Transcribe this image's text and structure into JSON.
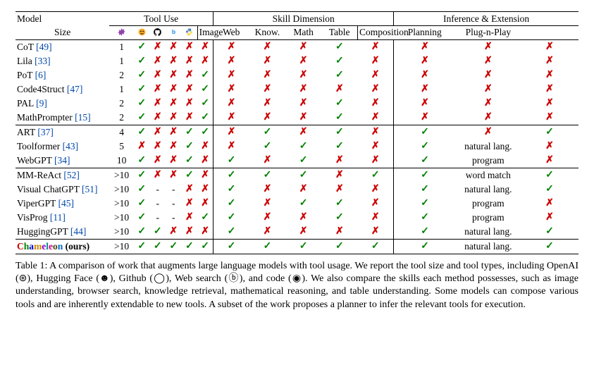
{
  "headers": {
    "model": "Model",
    "group_tool": "Tool Use",
    "group_skill": "Skill Dimension",
    "group_inf": "Inference & Extension",
    "size": "Size",
    "skill": [
      "Image",
      "Web",
      "Know.",
      "Math",
      "Table"
    ],
    "inf": [
      "Composition",
      "Planning",
      "Plug-n-Play"
    ]
  },
  "tool_icons": {
    "openai": {
      "name": "openai-icon",
      "color": "#8e44ad"
    },
    "hf": {
      "name": "huggingface-icon",
      "color": "#f5a623"
    },
    "github": {
      "name": "github-icon",
      "color": "#000000"
    },
    "web": {
      "name": "websearch-icon",
      "color": "#1e88e5"
    },
    "code": {
      "name": "python-icon",
      "color": "#3572A5"
    }
  },
  "marks": {
    "check": "✓",
    "cross": "✗",
    "dash": "-"
  },
  "colors": {
    "check": "#008000",
    "cross": "#cc0000",
    "cite": "#0047ab",
    "chameleon": [
      "#cc0000",
      "#008000",
      "#0000cc",
      "#cc8800",
      "#8800cc",
      "#008888",
      "#cc0088",
      "#444400",
      "#0066cc"
    ]
  },
  "groups": [
    [
      {
        "name": "CoT",
        "cite": "49",
        "size": "1",
        "tools": [
          "c",
          "x",
          "x",
          "x",
          "x"
        ],
        "skills": [
          "x",
          "x",
          "x",
          "c",
          "x"
        ],
        "comp": "x",
        "plan": "x",
        "plug": "x"
      },
      {
        "name": "Lila",
        "cite": "33",
        "size": "1",
        "tools": [
          "c",
          "x",
          "x",
          "x",
          "x"
        ],
        "skills": [
          "x",
          "x",
          "x",
          "c",
          "x"
        ],
        "comp": "x",
        "plan": "x",
        "plug": "x"
      },
      {
        "name": "PoT",
        "cite": "6",
        "size": "2",
        "tools": [
          "c",
          "x",
          "x",
          "x",
          "c"
        ],
        "skills": [
          "x",
          "x",
          "x",
          "c",
          "x"
        ],
        "comp": "x",
        "plan": "x",
        "plug": "x"
      },
      {
        "name": "Code4Struct",
        "cite": "47",
        "size": "1",
        "tools": [
          "c",
          "x",
          "x",
          "x",
          "c"
        ],
        "skills": [
          "x",
          "x",
          "x",
          "x",
          "x"
        ],
        "comp": "x",
        "plan": "x",
        "plug": "x"
      },
      {
        "name": "PAL",
        "cite": "9",
        "size": "2",
        "tools": [
          "c",
          "x",
          "x",
          "x",
          "c"
        ],
        "skills": [
          "x",
          "x",
          "x",
          "c",
          "x"
        ],
        "comp": "x",
        "plan": "x",
        "plug": "x"
      },
      {
        "name": "MathPrompter",
        "cite": "15",
        "size": "2",
        "tools": [
          "c",
          "x",
          "x",
          "x",
          "c"
        ],
        "skills": [
          "x",
          "x",
          "x",
          "c",
          "x"
        ],
        "comp": "x",
        "plan": "x",
        "plug": "x"
      }
    ],
    [
      {
        "name": "ART",
        "cite": "37",
        "size": "4",
        "tools": [
          "c",
          "x",
          "x",
          "c",
          "c"
        ],
        "skills": [
          "x",
          "c",
          "x",
          "c",
          "x"
        ],
        "comp": "c",
        "plan": "x",
        "plug": "c"
      },
      {
        "name": "Toolformer",
        "cite": "43",
        "size": "5",
        "tools": [
          "x",
          "x",
          "x",
          "c",
          "x"
        ],
        "skills": [
          "x",
          "c",
          "c",
          "c",
          "x"
        ],
        "comp": "c",
        "plan": "natural lang.",
        "plug": "x"
      },
      {
        "name": "WebGPT",
        "cite": "34",
        "size": "10",
        "tools": [
          "c",
          "x",
          "x",
          "c",
          "x"
        ],
        "skills": [
          "c",
          "x",
          "c",
          "x",
          "x"
        ],
        "comp": "c",
        "plan": "program",
        "plug": "x"
      }
    ],
    [
      {
        "name": "MM-ReAct",
        "cite": "52",
        "size": ">10",
        "tools": [
          "c",
          "x",
          "x",
          "c",
          "x"
        ],
        "skills": [
          "c",
          "c",
          "c",
          "x",
          "c"
        ],
        "comp": "c",
        "plan": "word match",
        "plug": "c"
      },
      {
        "name": "Visual ChatGPT",
        "cite": "51",
        "size": ">10",
        "tools": [
          "c",
          "d",
          "d",
          "x",
          "x"
        ],
        "skills": [
          "c",
          "x",
          "x",
          "x",
          "x"
        ],
        "comp": "c",
        "plan": "natural lang.",
        "plug": "c"
      },
      {
        "name": "ViperGPT",
        "cite": "45",
        "size": ">10",
        "tools": [
          "c",
          "d",
          "d",
          "x",
          "x"
        ],
        "skills": [
          "c",
          "x",
          "c",
          "c",
          "x"
        ],
        "comp": "c",
        "plan": "program",
        "plug": "x"
      },
      {
        "name": "VisProg",
        "cite": "11",
        "size": ">10",
        "tools": [
          "c",
          "d",
          "d",
          "x",
          "c"
        ],
        "skills": [
          "c",
          "x",
          "x",
          "c",
          "x"
        ],
        "comp": "c",
        "plan": "program",
        "plug": "x"
      },
      {
        "name": "HuggingGPT",
        "cite": "44",
        "size": ">10",
        "tools": [
          "c",
          "c",
          "x",
          "x",
          "x"
        ],
        "skills": [
          "c",
          "x",
          "x",
          "x",
          "x"
        ],
        "comp": "c",
        "plan": "natural lang.",
        "plug": "c"
      }
    ],
    [
      {
        "name": "Chameleon",
        "is_ours": true,
        "ours": " (ours)",
        "size": ">10",
        "tools": [
          "c",
          "c",
          "c",
          "c",
          "c"
        ],
        "skills": [
          "c",
          "c",
          "c",
          "c",
          "c"
        ],
        "comp": "c",
        "plan": "natural lang.",
        "plug": "c"
      }
    ]
  ],
  "caption": {
    "label": "Table 1:",
    "text": " A comparison of work that augments large language models with tool usage. We report the tool size and tool types, including OpenAI (⊛), Hugging Face (☻), Github (◯), Web search (ⓑ), and code (◉). We also compare the skills each method possesses, such as image understanding, browser search, knowledge retrieval, mathematical reasoning, and table understanding. Some models can compose various tools and are inherently extendable to new tools. A subset of the work proposes a planner to infer the relevant tools for execution."
  }
}
